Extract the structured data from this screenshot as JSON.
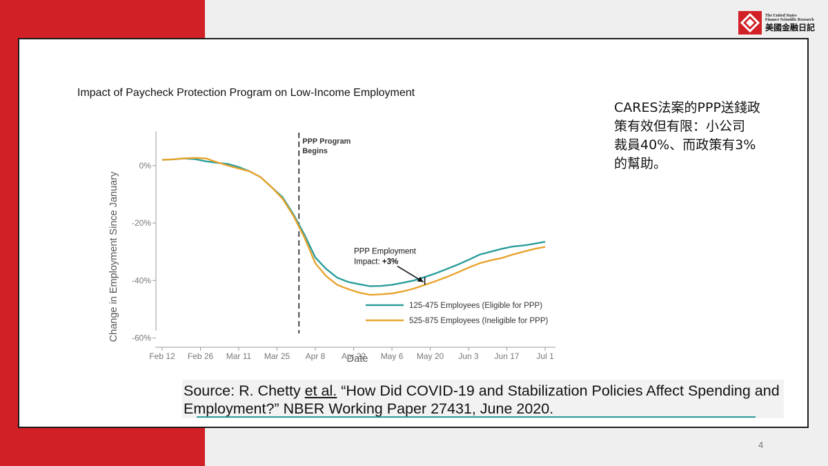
{
  "colors": {
    "brand_red": "#d12127",
    "series_teal": "#2a9d9a",
    "series_orange": "#e8a32c",
    "source_underline": "#2a9d9a"
  },
  "logo": {
    "icon": "diamond-logo-icon",
    "en_line1": "The United States",
    "en_line2": "Finance Scientific Research",
    "zh": "美國金融日記"
  },
  "side_text": {
    "lines": [
      "CARES法案的PPP送錢政",
      "策有效但有限：小公司",
      "裁員40%、而政策有3%",
      "的幫助。"
    ]
  },
  "source": {
    "prefix": "Source: R. Chetty ",
    "etal": "et al.",
    "rest": " “How Did COVID-19 and Stabilization Policies Affect Spending and Employment?” NBER Working Paper 27431, June 2020."
  },
  "page_number": "4",
  "chart_data": {
    "type": "line",
    "title": "Impact of Paycheck Protection Program on Low-Income Employment",
    "xlabel": "Date",
    "ylabel": "Change in Employment Since January",
    "x_ticks": [
      "Feb 12",
      "Feb 26",
      "Mar 11",
      "Mar 25",
      "Apr 8",
      "Apr 22",
      "May 6",
      "May 20",
      "Jun 3",
      "Jun 17",
      "Jul 1"
    ],
    "y_ticks": [
      "0%",
      "-20%",
      "-40%",
      "-60%"
    ],
    "y_tick_values": [
      0,
      -20,
      -40,
      -60
    ],
    "xlim": [
      0,
      142
    ],
    "ylim": [
      -63,
      12
    ],
    "x_unit": "days since Feb 12",
    "vline": {
      "x": 50,
      "label_line1": "PPP Program",
      "label_line2": "Begins"
    },
    "annotation": {
      "line1": "PPP Employment",
      "line2_prefix": "Impact: ",
      "line2_value": "+3%",
      "arrow_from": [
        86,
        -35
      ],
      "arrow_to": [
        95.5,
        -40.5
      ]
    },
    "series": [
      {
        "name": "125-475 Employees (Eligible for PPP)",
        "color": "#2a9d9a",
        "x": [
          0,
          4,
          8,
          12,
          16,
          20,
          24,
          28,
          32,
          36,
          40,
          44,
          48,
          52,
          56,
          60,
          64,
          68,
          72,
          76,
          80,
          84,
          88,
          92,
          96,
          100,
          104,
          108,
          112,
          116,
          120,
          124,
          128,
          132,
          136,
          140
        ],
        "y": [
          2,
          2.2,
          2.5,
          2.3,
          1.5,
          1,
          0.6,
          -0.5,
          -2,
          -4,
          -7.5,
          -11,
          -17,
          -24,
          -32,
          -36,
          -39,
          -40.5,
          -41.3,
          -42,
          -41.9,
          -41.5,
          -40.8,
          -40,
          -38.8,
          -37.5,
          -36,
          -34.5,
          -32.8,
          -31,
          -30,
          -29,
          -28.2,
          -27.8,
          -27.2,
          -26.5
        ]
      },
      {
        "name": "525-875 Employees (Ineligible for PPP)",
        "color": "#e8a32c",
        "x": [
          0,
          4,
          8,
          12,
          16,
          20,
          24,
          28,
          32,
          36,
          40,
          44,
          48,
          52,
          56,
          60,
          64,
          68,
          72,
          76,
          80,
          84,
          88,
          92,
          96,
          100,
          104,
          108,
          112,
          116,
          120,
          124,
          128,
          132,
          136,
          140
        ],
        "y": [
          2,
          2.2,
          2.5,
          2.7,
          2.5,
          1.2,
          0,
          -1,
          -2,
          -4,
          -7.5,
          -11.5,
          -17.5,
          -25,
          -34,
          -38.5,
          -41.5,
          -43,
          -44.2,
          -45,
          -44.8,
          -44.5,
          -43.8,
          -42.8,
          -41.5,
          -40.2,
          -38.8,
          -37.2,
          -35.5,
          -34,
          -33,
          -32.2,
          -31,
          -30,
          -29,
          -28.3
        ]
      }
    ],
    "legend_position": "bottom-right"
  }
}
